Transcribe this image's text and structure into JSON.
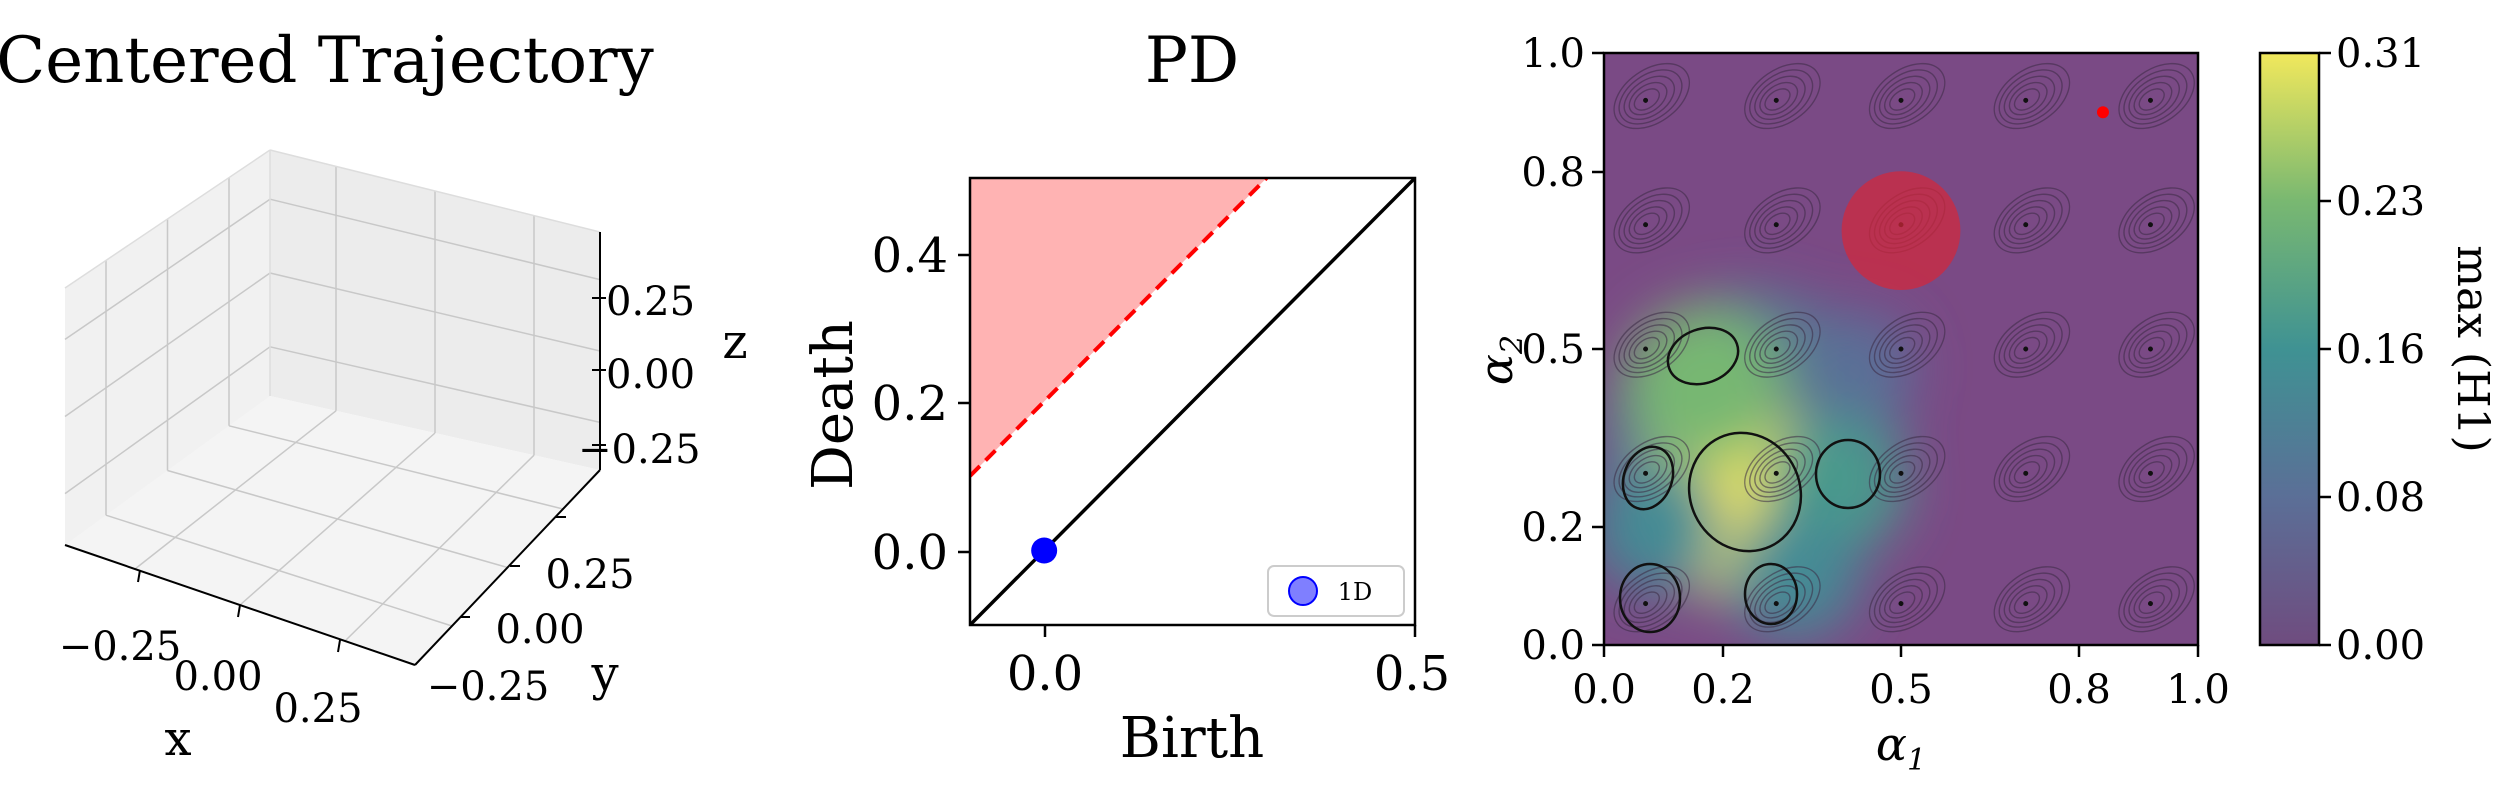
{
  "chart_data": [
    {
      "type": "scatter",
      "panel": "3d-axes",
      "title": "Centered Trajectory",
      "xlabel": "x",
      "ylabel": "y",
      "zlabel": "z",
      "xticks": [
        "−0.25",
        "0.00",
        "0.25"
      ],
      "yticks": [
        "−0.25",
        "0.00",
        "0.25"
      ],
      "zticks": [
        "−0.25",
        "0.00",
        "0.25"
      ],
      "series": [],
      "grid": true
    },
    {
      "type": "scatter",
      "panel": "persistence-diagram",
      "title": "PD",
      "xlabel": "Birth",
      "ylabel": "Death",
      "xlim": [
        -0.1,
        0.5
      ],
      "ylim": [
        -0.1,
        0.5
      ],
      "xticks": [
        "0.0",
        "0.5"
      ],
      "yticks": [
        "0.0",
        "0.2",
        "0.4"
      ],
      "series": [
        {
          "name": "1D",
          "color": "#0000ff",
          "points": [
            [
              0.0,
              0.0
            ]
          ]
        }
      ],
      "diagonal": {
        "from": [
          -0.1,
          -0.1
        ],
        "to": [
          0.5,
          0.5
        ],
        "color": "#000000"
      },
      "threshold_line": {
        "intercept": 0.2,
        "slope": 1,
        "color": "#ff0000",
        "style": "dashed"
      },
      "shaded_region_color": "#ffb3b3",
      "legend": {
        "position": "bottom-right",
        "label": "1D"
      }
    },
    {
      "type": "heatmap",
      "panel": "parameter-map",
      "xlabel": "α1",
      "ylabel": "α2",
      "xlim": [
        0,
        1
      ],
      "ylim": [
        0,
        1
      ],
      "xticks": [
        "0.0",
        "0.2",
        "0.5",
        "0.8",
        "1.0"
      ],
      "yticks": [
        "0.0",
        "0.2",
        "0.5",
        "0.8",
        "1.0"
      ],
      "colormap": "viridis",
      "background_color": "#7a4a85",
      "colorbar": {
        "label": "max (H1)",
        "range": [
          0,
          0.31
        ],
        "ticks": [
          "0.00",
          "0.08",
          "0.16",
          "0.23",
          "0.31"
        ]
      },
      "hot_blobs": [
        {
          "cx": 0.22,
          "cy": 0.25,
          "value": 0.31
        },
        {
          "cx": 0.17,
          "cy": 0.44,
          "value": 0.23
        },
        {
          "cx": 0.09,
          "cy": 0.2,
          "value": 0.14
        },
        {
          "cx": 0.39,
          "cy": 0.27,
          "value": 0.17
        },
        {
          "cx": 0.32,
          "cy": 0.12,
          "value": 0.14
        },
        {
          "cx": 0.43,
          "cy": 0.47,
          "value": 0.08
        }
      ],
      "marked_point": {
        "x": 0.84,
        "y": 0.9,
        "color": "#ff0000"
      },
      "highlight_circle": {
        "cx": 0.5,
        "cy": 0.7,
        "r": 0.1,
        "color": "#d62739"
      },
      "phase_portrait_grid": [
        0.07,
        0.29,
        0.5,
        0.71,
        0.92
      ]
    }
  ]
}
